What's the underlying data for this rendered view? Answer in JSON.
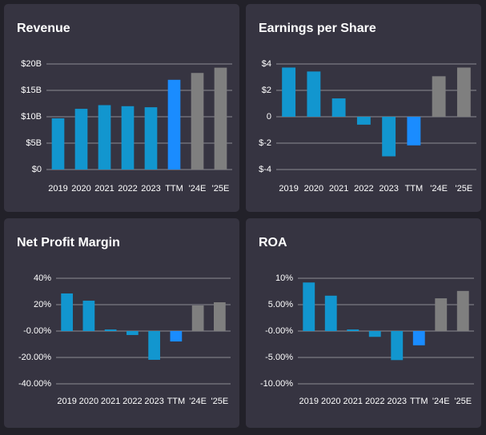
{
  "chart_data": [
    {
      "type": "bar",
      "title": "Revenue",
      "categories": [
        "2019",
        "2020",
        "2021",
        "2022",
        "2023",
        "TTM",
        "'24E",
        "'25E"
      ],
      "values": [
        9.7,
        11.5,
        12.2,
        12.0,
        11.8,
        17.0,
        18.3,
        19.3
      ],
      "colors": [
        "#1296cf",
        "#1296cf",
        "#1296cf",
        "#1296cf",
        "#1296cf",
        "#1a8cff",
        "#7f7f7f",
        "#7f7f7f"
      ],
      "ylim": [
        0,
        20
      ],
      "yticks": [
        {
          "value": 0,
          "label": "$0"
        },
        {
          "value": 5,
          "label": "$5B"
        },
        {
          "value": 10,
          "label": "$10B"
        },
        {
          "value": 15,
          "label": "$15B"
        },
        {
          "value": 20,
          "label": "$20B"
        }
      ],
      "grid": true
    },
    {
      "type": "bar",
      "title": "Earnings per Share",
      "categories": [
        "2019",
        "2020",
        "2021",
        "2022",
        "2023",
        "TTM",
        "'24E",
        "'25E"
      ],
      "values": [
        3.73,
        3.43,
        1.39,
        -0.6,
        -3.0,
        -2.17,
        3.07,
        3.73
      ],
      "colors": [
        "#1296cf",
        "#1296cf",
        "#1296cf",
        "#1296cf",
        "#1296cf",
        "#1a8cff",
        "#7f7f7f",
        "#7f7f7f"
      ],
      "ylim": [
        -4,
        4
      ],
      "yticks": [
        {
          "value": -4,
          "label": "$-4"
        },
        {
          "value": -2,
          "label": "$-2"
        },
        0,
        {
          "value": 2,
          "label": "$2"
        },
        {
          "value": 4,
          "label": "$4"
        }
      ],
      "grid": true
    },
    {
      "type": "bar",
      "title": "Net Profit Margin",
      "categories": [
        "2019",
        "2020",
        "2021",
        "2022",
        "2023",
        "TTM",
        "'24E",
        "'25E"
      ],
      "values": [
        28.5,
        23.0,
        1.2,
        -3.0,
        -21.8,
        -7.9,
        19.4,
        21.8
      ],
      "colors": [
        "#1296cf",
        "#1296cf",
        "#1296cf",
        "#1296cf",
        "#1296cf",
        "#1a8cff",
        "#7f7f7f",
        "#7f7f7f"
      ],
      "ylim": [
        -40,
        40
      ],
      "yticks": [
        {
          "value": -40,
          "label": "-40.00%"
        },
        {
          "value": -20,
          "label": "-20.00%"
        },
        {
          "value": 0,
          "label": "-0.00%"
        },
        {
          "value": 20,
          "label": "20%"
        },
        {
          "value": 40,
          "label": "40%"
        }
      ],
      "grid": true
    },
    {
      "type": "bar",
      "title": "ROA",
      "categories": [
        "2019",
        "2020",
        "2021",
        "2022",
        "2023",
        "TTM",
        "'24E",
        "'25E"
      ],
      "values": [
        9.2,
        6.7,
        0.3,
        -1.1,
        -5.5,
        -2.7,
        6.2,
        7.6
      ],
      "colors": [
        "#1296cf",
        "#1296cf",
        "#1296cf",
        "#1296cf",
        "#1296cf",
        "#1a8cff",
        "#7f7f7f",
        "#7f7f7f"
      ],
      "ylim": [
        -10,
        10
      ],
      "yticks": [
        {
          "value": -10,
          "label": "-10.00%"
        },
        {
          "value": -5,
          "label": "-5.00%"
        },
        {
          "value": 0,
          "label": "-0.00%"
        },
        {
          "value": 5,
          "label": "5.00%"
        },
        {
          "value": 10,
          "label": "10%"
        }
      ],
      "grid": true
    }
  ]
}
